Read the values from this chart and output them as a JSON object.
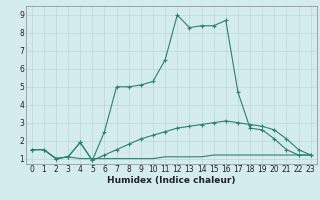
{
  "x": [
    0,
    1,
    2,
    3,
    4,
    5,
    6,
    7,
    8,
    9,
    10,
    11,
    12,
    13,
    14,
    15,
    16,
    17,
    18,
    19,
    20,
    21,
    22,
    23
  ],
  "line1_y": [
    1.5,
    1.5,
    1.0,
    1.1,
    1.9,
    0.9,
    2.5,
    5.0,
    5.0,
    5.1,
    5.3,
    6.5,
    9.0,
    8.3,
    8.4,
    8.4,
    8.7,
    4.7,
    2.7,
    2.6,
    2.1,
    1.5,
    1.2,
    1.2
  ],
  "line2_y": [
    1.5,
    1.5,
    1.0,
    1.1,
    1.9,
    0.9,
    1.2,
    1.5,
    1.8,
    2.1,
    2.3,
    2.5,
    2.7,
    2.8,
    2.9,
    3.0,
    3.1,
    3.0,
    2.9,
    2.8,
    2.6,
    2.1,
    1.5,
    1.2
  ],
  "line3_y": [
    1.5,
    1.5,
    1.0,
    1.1,
    1.0,
    1.0,
    1.0,
    1.0,
    1.0,
    1.0,
    1.0,
    1.1,
    1.1,
    1.1,
    1.1,
    1.2,
    1.2,
    1.2,
    1.2,
    1.2,
    1.2,
    1.2,
    1.2,
    1.2
  ],
  "color": "#2d7f6e",
  "bg_color": "#d4ecee",
  "grid_color": "#b8d8da",
  "xlabel": "Humidex (Indice chaleur)",
  "ylim": [
    0.7,
    9.5
  ],
  "xlim": [
    -0.5,
    23.5
  ],
  "yticks": [
    1,
    2,
    3,
    4,
    5,
    6,
    7,
    8,
    9
  ],
  "xticks": [
    0,
    1,
    2,
    3,
    4,
    5,
    6,
    7,
    8,
    9,
    10,
    11,
    12,
    13,
    14,
    15,
    16,
    17,
    18,
    19,
    20,
    21,
    22,
    23
  ],
  "tick_fontsize": 5.5,
  "xlabel_fontsize": 6.5,
  "marker_size": 2.5,
  "linewidth": 0.8
}
